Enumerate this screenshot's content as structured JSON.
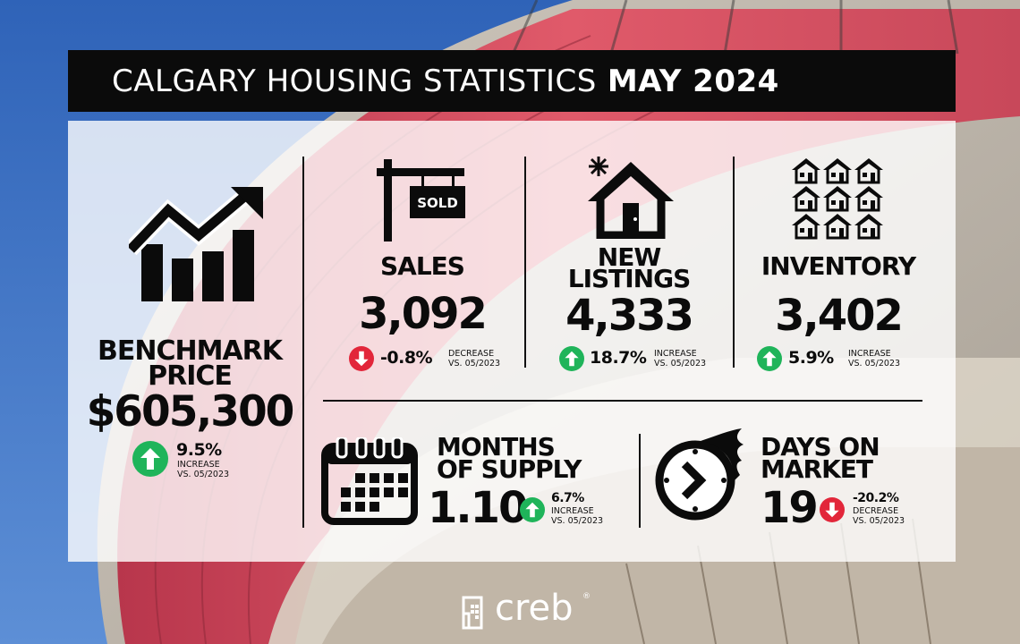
{
  "title": {
    "normal": "CALGARY HOUSING STATISTICS",
    "bold": "MAY 2024"
  },
  "benchmark": {
    "label_line1": "BENCHMARK",
    "label_line2": "PRICE",
    "value": "$605,300",
    "pct": "9.5%",
    "direction": "INCREASE",
    "compare": "VS. 05/2023",
    "icon": "bar-chart-growth-icon"
  },
  "sales": {
    "label": "SALES",
    "value": "3,092",
    "pct": "-0.8%",
    "direction": "DECREASE",
    "compare": "VS. 05/2023",
    "icon": "sold-sign-icon",
    "sign_text": "SOLD"
  },
  "new_listings": {
    "label_line1": "NEW",
    "label_line2": "LISTINGS",
    "value": "4,333",
    "pct": "18.7%",
    "direction": "INCREASE",
    "compare": "VS. 05/2023",
    "icon": "new-house-icon"
  },
  "inventory": {
    "label": "INVENTORY",
    "value": "3,402",
    "pct": "5.9%",
    "direction": "INCREASE",
    "compare": "VS. 05/2023",
    "icon": "houses-grid-icon"
  },
  "months_supply": {
    "label_line1": "MONTHS",
    "label_line2": "OF SUPPLY",
    "value": "1.10",
    "pct": "6.7%",
    "direction": "INCREASE",
    "compare": "VS. 05/2023",
    "icon": "calendar-icon"
  },
  "days_on_market": {
    "label_line1": "DAYS ON",
    "label_line2": "MARKET",
    "value": "19",
    "pct": "-20.2%",
    "direction": "DECREASE",
    "compare": "VS. 05/2023",
    "icon": "fast-clock-icon"
  },
  "logo": {
    "text": "creb",
    "mark": "®"
  },
  "colors": {
    "up": "#1fb45a",
    "down": "#e2263a",
    "title_bg": "#0b0b0b",
    "roof_red": "#d8465a"
  }
}
